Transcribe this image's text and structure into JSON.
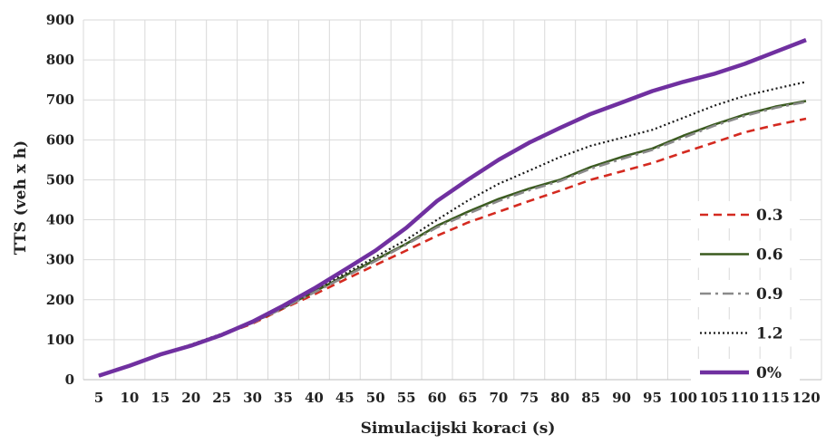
{
  "chart_data": {
    "type": "line",
    "title": "",
    "xlabel": "Simulacijski koraci (s)",
    "ylabel": "TTS (veh x h)",
    "ylim": [
      0,
      900
    ],
    "y_ticks": [
      "0",
      "100",
      "200",
      "300",
      "400",
      "500",
      "600",
      "700",
      "800",
      "900"
    ],
    "x": [
      5,
      10,
      15,
      20,
      25,
      30,
      35,
      40,
      45,
      50,
      55,
      60,
      65,
      70,
      75,
      80,
      85,
      90,
      95,
      100,
      105,
      110,
      115,
      120
    ],
    "x_ticks": [
      "5",
      "10",
      "15",
      "20",
      "25",
      "30",
      "35",
      "40",
      "45",
      "50",
      "55",
      "60",
      "65",
      "70",
      "75",
      "80",
      "85",
      "90",
      "95",
      "100",
      "105",
      "110",
      "115",
      "120"
    ],
    "grid": true,
    "legend_position": "right",
    "series": [
      {
        "name": "0.3",
        "color": "#d42a20",
        "style": "dashed",
        "values": [
          10,
          35,
          63,
          85,
          112,
          140,
          178,
          213,
          250,
          287,
          323,
          360,
          393,
          420,
          447,
          473,
          500,
          521,
          542,
          568,
          593,
          619,
          637,
          653
        ]
      },
      {
        "name": "0.6",
        "color": "#3a5a1f",
        "style": "solid",
        "values": [
          10,
          35,
          63,
          87,
          113,
          143,
          180,
          220,
          260,
          300,
          340,
          385,
          420,
          452,
          478,
          500,
          532,
          557,
          578,
          610,
          638,
          663,
          683,
          697
        ]
      },
      {
        "name": "0.9",
        "color": "#8a8a8a",
        "style": "dashdot",
        "values": [
          10,
          35,
          63,
          86,
          112,
          142,
          179,
          218,
          257,
          297,
          338,
          381,
          415,
          447,
          474,
          497,
          528,
          552,
          575,
          605,
          635,
          660,
          680,
          695
        ]
      },
      {
        "name": "1.2",
        "color": "#1a1a1a",
        "style": "dotted",
        "values": [
          10,
          35,
          63,
          88,
          115,
          145,
          183,
          225,
          265,
          307,
          350,
          400,
          448,
          490,
          523,
          557,
          585,
          605,
          625,
          655,
          685,
          710,
          728,
          745
        ]
      },
      {
        "name": "0%",
        "color": "#7030a0",
        "style": "solid-thick",
        "values": [
          10,
          35,
          63,
          85,
          112,
          145,
          185,
          228,
          275,
          323,
          380,
          447,
          500,
          550,
          593,
          630,
          665,
          693,
          722,
          745,
          765,
          790,
          820,
          850
        ]
      }
    ]
  }
}
